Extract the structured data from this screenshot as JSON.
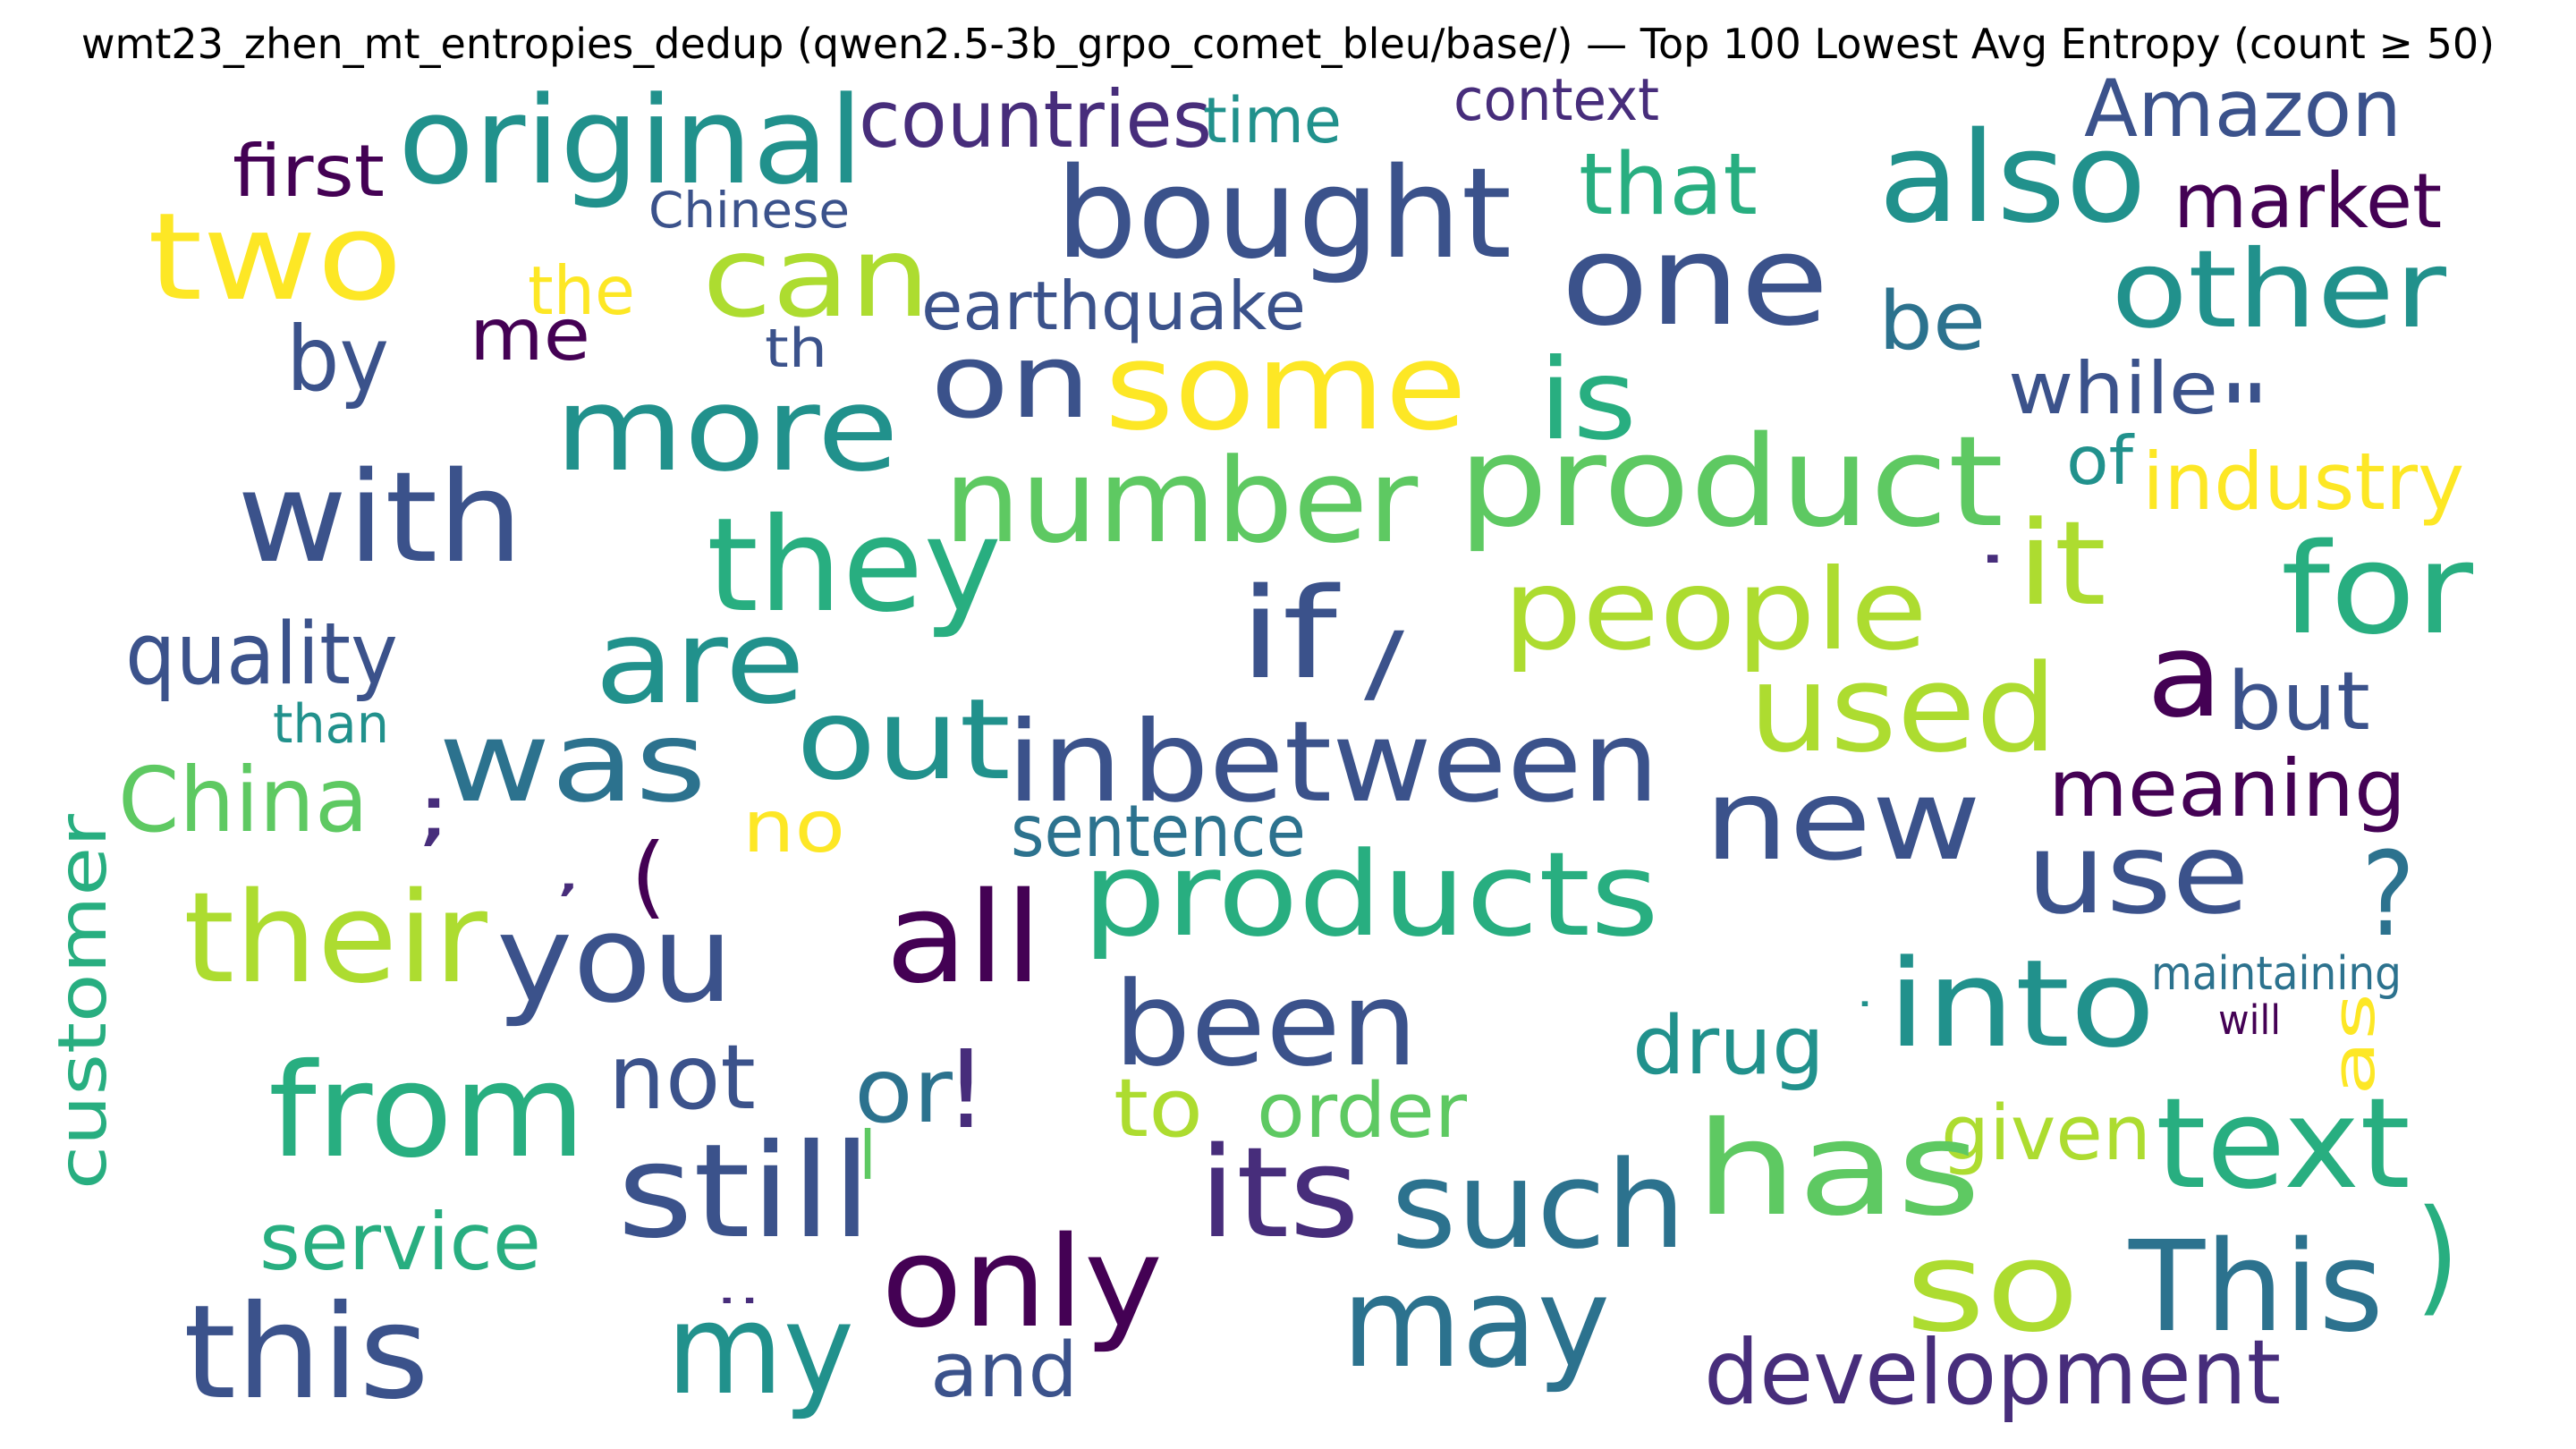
{
  "title": "wmt23_zhen_mt_entropies_dedup (qwen2.5-3b_grpo_comet_bleu/base/) — Top 100 Lowest Avg Entropy (count ≥ 50)",
  "chart_data": {
    "type": "wordcloud",
    "colormap": "viridis",
    "palette": {
      "dark_purple": "#440154",
      "indigo": "#472d7b",
      "slate_blue": "#3b528b",
      "steel_blue": "#2c728e",
      "teal": "#21918c",
      "sea_green": "#28ae80",
      "green": "#5ec962",
      "lime": "#addc30",
      "yellow": "#fde725"
    },
    "words": [
      {
        "text": "bought",
        "color": "slate_blue"
      },
      {
        "text": "original",
        "color": "teal"
      },
      {
        "text": "also",
        "color": "teal"
      },
      {
        "text": "one",
        "color": "slate_blue"
      },
      {
        "text": "two",
        "color": "yellow"
      },
      {
        "text": "other",
        "color": "teal"
      },
      {
        "text": "countries",
        "color": "indigo"
      },
      {
        "text": "Amazon",
        "color": "slate_blue"
      },
      {
        "text": "can",
        "color": "lime"
      },
      {
        "text": "time",
        "color": "teal"
      },
      {
        "text": "context",
        "color": "indigo"
      },
      {
        "text": "first",
        "color": "dark_purple"
      },
      {
        "text": "market",
        "color": "dark_purple"
      },
      {
        "text": "that",
        "color": "sea_green"
      },
      {
        "text": "Chinese",
        "color": "slate_blue"
      },
      {
        "text": "the",
        "color": "yellow"
      },
      {
        "text": "earthquake",
        "color": "slate_blue"
      },
      {
        "text": "be",
        "color": "steel_blue"
      },
      {
        "text": "by",
        "color": "slate_blue"
      },
      {
        "text": "me",
        "color": "dark_purple"
      },
      {
        "text": "th",
        "color": "slate_blue"
      },
      {
        "text": "more",
        "color": "teal"
      },
      {
        "text": "on",
        "color": "slate_blue"
      },
      {
        "text": "some",
        "color": "yellow"
      },
      {
        "text": "is",
        "color": "sea_green"
      },
      {
        "text": "while",
        "color": "slate_blue"
      },
      {
        "text": "\"",
        "color": "slate_blue"
      },
      {
        "text": "with",
        "color": "slate_blue"
      },
      {
        "text": "number",
        "color": "green"
      },
      {
        "text": "product",
        "color": "green"
      },
      {
        "text": "of",
        "color": "teal"
      },
      {
        "text": "industry",
        "color": "yellow"
      },
      {
        "text": "they",
        "color": "sea_green"
      },
      {
        "text": "it",
        "color": "lime"
      },
      {
        "text": ".",
        "color": "indigo"
      },
      {
        "text": "people",
        "color": "lime"
      },
      {
        "text": "for",
        "color": "sea_green"
      },
      {
        "text": "quality",
        "color": "slate_blue"
      },
      {
        "text": "are",
        "color": "teal"
      },
      {
        "text": "if",
        "color": "slate_blue"
      },
      {
        "text": "/",
        "color": "slate_blue"
      },
      {
        "text": "a",
        "color": "dark_purple"
      },
      {
        "text": "but",
        "color": "slate_blue"
      },
      {
        "text": "than",
        "color": "teal"
      },
      {
        "text": "was",
        "color": "steel_blue"
      },
      {
        "text": "out",
        "color": "teal"
      },
      {
        "text": "in",
        "color": "slate_blue"
      },
      {
        "text": "between",
        "color": "slate_blue"
      },
      {
        "text": "used",
        "color": "lime"
      },
      {
        "text": "meaning",
        "color": "dark_purple"
      },
      {
        "text": "China",
        "color": "green"
      },
      {
        "text": ";",
        "color": "indigo"
      },
      {
        "text": "no",
        "color": "yellow"
      },
      {
        "text": "new",
        "color": "slate_blue"
      },
      {
        "text": "sentence",
        "color": "steel_blue"
      },
      {
        "text": "use",
        "color": "slate_blue"
      },
      {
        "text": ",",
        "color": "indigo"
      },
      {
        "text": "(",
        "color": "dark_purple"
      },
      {
        "text": "?",
        "color": "steel_blue"
      },
      {
        "text": "their",
        "color": "lime"
      },
      {
        "text": "you",
        "color": "slate_blue"
      },
      {
        "text": "all",
        "color": "dark_purple"
      },
      {
        "text": "products",
        "color": "sea_green"
      },
      {
        "text": "customer",
        "color": "sea_green"
      },
      {
        "text": "been",
        "color": "slate_blue"
      },
      {
        "text": "into",
        "color": "teal"
      },
      {
        "text": "maintaining",
        "color": "steel_blue"
      },
      {
        "text": "·",
        "color": "teal"
      },
      {
        "text": "will",
        "color": "dark_purple"
      },
      {
        "text": "as",
        "color": "yellow"
      },
      {
        "text": "from",
        "color": "sea_green"
      },
      {
        "text": "not",
        "color": "slate_blue"
      },
      {
        "text": "or",
        "color": "steel_blue"
      },
      {
        "text": "!",
        "color": "indigo"
      },
      {
        "text": "drug",
        "color": "teal"
      },
      {
        "text": "to",
        "color": "lime"
      },
      {
        "text": "order",
        "color": "green"
      },
      {
        "text": "given",
        "color": "lime"
      },
      {
        "text": "text",
        "color": "sea_green"
      },
      {
        "text": "l",
        "color": "green"
      },
      {
        "text": "still",
        "color": "slate_blue"
      },
      {
        "text": "its",
        "color": "indigo"
      },
      {
        "text": "such",
        "color": "steel_blue"
      },
      {
        "text": "has",
        "color": "green"
      },
      {
        "text": "service",
        "color": "sea_green"
      },
      {
        "text": "only",
        "color": "dark_purple"
      },
      {
        "text": "..",
        "color": "indigo"
      },
      {
        "text": "so",
        "color": "lime"
      },
      {
        "text": "This",
        "color": "steel_blue"
      },
      {
        "text": ")",
        "color": "sea_green"
      },
      {
        "text": "this",
        "color": "slate_blue"
      },
      {
        "text": "my",
        "color": "teal"
      },
      {
        "text": "may",
        "color": "steel_blue"
      },
      {
        "text": "and",
        "color": "slate_blue"
      },
      {
        "text": "development",
        "color": "indigo"
      }
    ]
  }
}
